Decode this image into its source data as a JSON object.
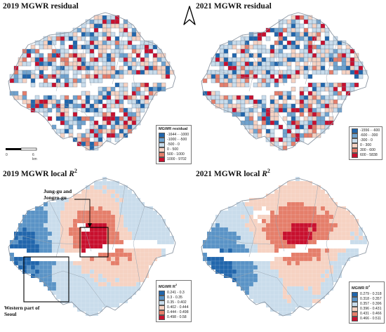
{
  "figure": {
    "north_arrow": "north-arrow-icon",
    "panels": [
      {
        "key": "p2019r",
        "title_prefix": "2019 MGWR residual",
        "title_r": "",
        "legend_title": "MGWR residual",
        "legend_title_r": "",
        "field": "residual",
        "classes": [
          {
            "label": "-1644 - -1000",
            "color": "#2166ac"
          },
          {
            "label": "-1000 - -500",
            "color": "#6fa3cf"
          },
          {
            "label": "-500 - 0",
            "color": "#c9dceb"
          },
          {
            "label": "0 - 500",
            "color": "#f6d2c2"
          },
          {
            "label": "500 - 1000",
            "color": "#e57e6a"
          },
          {
            "label": "1000 - 9702",
            "color": "#c8102e"
          }
        ]
      },
      {
        "key": "p2021r",
        "title_prefix": "2021 MGWR residual",
        "title_r": "",
        "legend_title": "",
        "legend_title_r": "",
        "field": "residual",
        "classes": [
          {
            "label": "-1556 - -600",
            "color": "#2166ac"
          },
          {
            "label": "-600 - -300",
            "color": "#6fa3cf"
          },
          {
            "label": "-300 - 0",
            "color": "#c9dceb"
          },
          {
            "label": "0 - 300",
            "color": "#f6d2c2"
          },
          {
            "label": "300 - 600",
            "color": "#e57e6a"
          },
          {
            "label": "600 - 5838",
            "color": "#c8102e"
          }
        ]
      },
      {
        "key": "p2019l",
        "title_prefix": "2019 MGWR local ",
        "title_r": "R",
        "legend_title": "MGWR R",
        "legend_title_r": "2",
        "field": "local",
        "classes": [
          {
            "label": "0.241 - 0.3",
            "color": "#2166ac"
          },
          {
            "label": "0.3 - 0.35",
            "color": "#5a93c6"
          },
          {
            "label": "0.35 - 0.402",
            "color": "#c9dceb"
          },
          {
            "label": "0.402 - 0.444",
            "color": "#f6d2c2"
          },
          {
            "label": "0.444 - 0.498",
            "color": "#e57e6a"
          },
          {
            "label": "0.498 - 0.58",
            "color": "#c8102e"
          }
        ],
        "annotations": {
          "central": "Jung-gu and\nJongro-gu",
          "west": "Western part of\nSeoul"
        }
      },
      {
        "key": "p2021l",
        "title_prefix": "2021 MGWR local ",
        "title_r": "R",
        "legend_title": "MGWR R",
        "legend_title_r": "2",
        "field": "local",
        "classes": [
          {
            "label": "0.279 - 0.318",
            "color": "#2166ac"
          },
          {
            "label": "0.318 - 0.357",
            "color": "#5a93c6"
          },
          {
            "label": "0.357 - 0.396",
            "color": "#c9dceb"
          },
          {
            "label": "0.396 - 0.431",
            "color": "#f6d2c2"
          },
          {
            "label": "0.431 - 0.466",
            "color": "#e57e6a"
          },
          {
            "label": "0.466 - 0.511",
            "color": "#c8102e"
          }
        ]
      }
    ],
    "scale": {
      "zero": "0",
      "end": "6 km"
    }
  }
}
